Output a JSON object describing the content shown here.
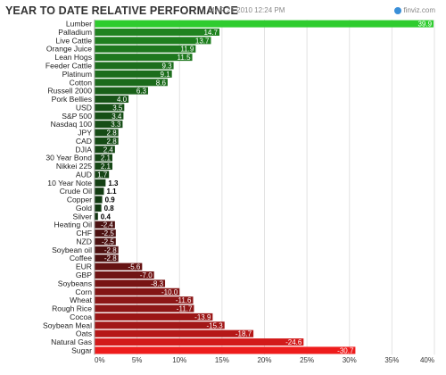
{
  "header": {
    "title": "YEAR TO DATE RELATIVE PERFORMANCE",
    "timestamp": "MAR 21 2010 12:24 PM",
    "brand": "finviz.com",
    "brand_icon": "finviz-logo-icon"
  },
  "chart_data": {
    "type": "bar",
    "orientation": "horizontal",
    "title": "YEAR TO DATE RELATIVE PERFORMANCE",
    "xlabel": "",
    "ylabel": "",
    "xlim": [
      0,
      40
    ],
    "ticks": [
      "0%",
      "5%",
      "10%",
      "15%",
      "20%",
      "25%",
      "30%",
      "35%",
      "40%"
    ],
    "grid": true,
    "categories": [
      "Lumber",
      "Palladium",
      "Live Cattle",
      "Orange Juice",
      "Lean Hogs",
      "Feeder Cattle",
      "Platinum",
      "Cotton",
      "Russell 2000",
      "Pork Bellies",
      "USD",
      "S&P 500",
      "Nasdaq 100",
      "JPY",
      "CAD",
      "DJIA",
      "30 Year Bond",
      "Nikkei 225",
      "AUD",
      "10 Year Note",
      "Crude Oil",
      "Copper",
      "Gold",
      "Silver",
      "Heating Oil",
      "CHF",
      "NZD",
      "Soybean oil",
      "Coffee",
      "EUR",
      "GBP",
      "Soybeans",
      "Corn",
      "Wheat",
      "Rough Rice",
      "Cocoa",
      "Soybean Meal",
      "Oats",
      "Natural Gas",
      "Sugar"
    ],
    "values": [
      39.9,
      14.7,
      13.7,
      11.9,
      11.5,
      9.3,
      9.1,
      8.6,
      6.3,
      4.0,
      3.5,
      3.4,
      3.3,
      2.8,
      2.8,
      2.4,
      2.1,
      2.1,
      1.7,
      1.3,
      1.1,
      0.9,
      0.8,
      0.4,
      -2.4,
      -2.5,
      -2.5,
      -2.8,
      -2.8,
      -5.6,
      -7.0,
      -8.3,
      -10.0,
      -11.6,
      -11.7,
      -13.9,
      -15.3,
      -18.7,
      -24.6,
      -30.7
    ],
    "value_labels": [
      "39.9",
      "14.7",
      "13.7",
      "11.9",
      "11.5",
      "9.3",
      "9.1",
      "8.6",
      "6.3",
      "4.0",
      "3.5",
      "3.4",
      "3.3",
      "2.8",
      "2.8",
      "2.4",
      "2.1",
      "2.1",
      "1.7",
      "1.3",
      "1.1",
      "0.9",
      "0.8",
      "0.4",
      "-2.4",
      "-2.5",
      "-2.5",
      "-2.8",
      "-2.8",
      "-5.6",
      "-7.0",
      "-8.3",
      "-10.0",
      "-11.6",
      "-11.7",
      "-13.9",
      "-15.3",
      "-18.7",
      "-24.6",
      "-30.7"
    ],
    "colors": {
      "positive_strong": "#2ecc2e",
      "positive_dark": "#0f2a0f",
      "negative_dark": "#2a0f0f",
      "negative_strong": "#ee1c1c",
      "grid": "#e2e2e2"
    }
  }
}
